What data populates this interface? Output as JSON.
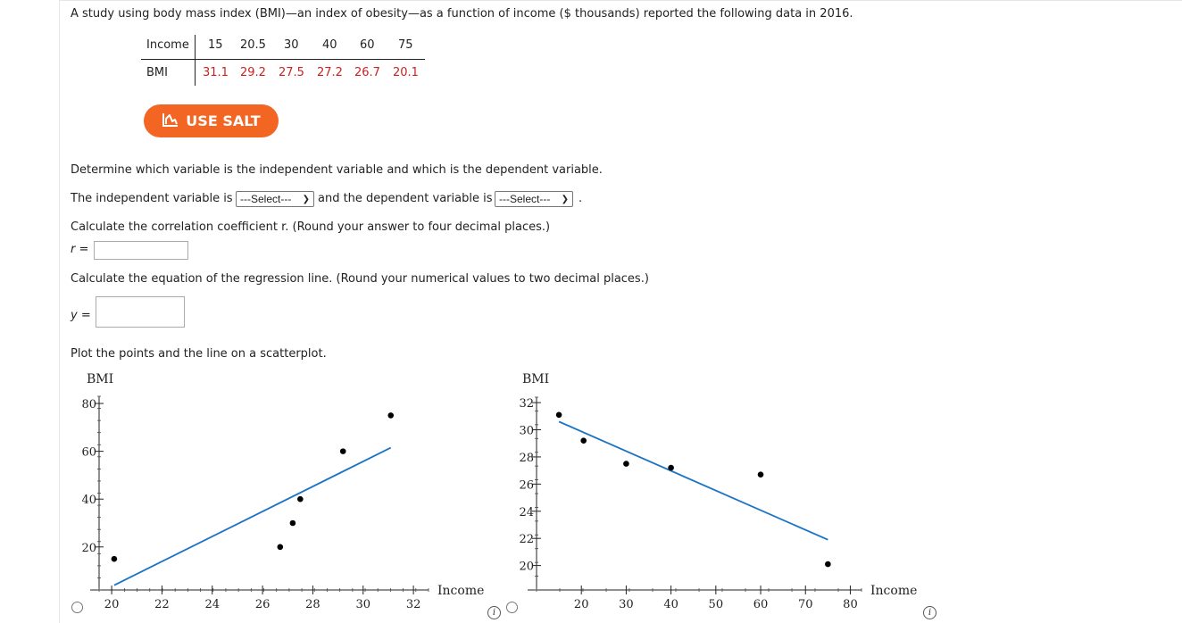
{
  "problem": {
    "intro": "A study using body mass index (BMI)—an index of obesity—as a function of income ($ thousands) reported the following data in 2016.",
    "table": {
      "row1_label": "Income",
      "row1_values": [
        "15",
        "20.5",
        "30",
        "40",
        "60",
        "75"
      ],
      "row2_label": "BMI",
      "row2_values": [
        "31.1",
        "29.2",
        "27.5",
        "27.2",
        "26.7",
        "20.1"
      ]
    },
    "salt_button": "USE SALT",
    "q1_text": "Determine which variable is the independent variable and which is the dependent variable.",
    "q1_part1": "The independent variable is",
    "q1_select1": "---Select---",
    "q1_part2": "and the dependent variable is",
    "q1_select2": "---Select---",
    "q1_end": ".",
    "q2_text": "Calculate the correlation coefficient r. (Round your answer to four decimal places.)",
    "q2_label": "r =",
    "q2_value": "",
    "q3_text": "Calculate the equation of the regression line. (Round your numerical values to two decimal places.)",
    "q3_label": "y =",
    "q3_value": "",
    "q4_text": "Plot the points and the line on a scatterplot."
  },
  "chart_data": [
    {
      "type": "scatter",
      "ylabel": "BMI",
      "xlabel": "Income",
      "x_ticks": [
        "20",
        "22",
        "24",
        "26",
        "28",
        "30",
        "32"
      ],
      "y_ticks": [
        "20",
        "40",
        "60",
        "80"
      ],
      "xlim": [
        19.5,
        32.6
      ],
      "ylim": [
        2,
        83
      ],
      "points": [
        [
          20.1,
          15
        ],
        [
          26.7,
          20
        ],
        [
          27.2,
          30
        ],
        [
          27.5,
          40
        ],
        [
          29.2,
          60
        ],
        [
          31.1,
          75
        ]
      ],
      "line": [
        [
          20.1,
          4
        ],
        [
          31.1,
          61.5
        ]
      ],
      "line_color": "#1a73c4",
      "point_color": "#000000"
    },
    {
      "type": "scatter",
      "ylabel": "BMI",
      "xlabel": "Income",
      "x_ticks": [
        "20",
        "30",
        "40",
        "50",
        "60",
        "70",
        "80"
      ],
      "y_ticks": [
        "20",
        "22",
        "24",
        "26",
        "28",
        "30",
        "32"
      ],
      "xlim": [
        10,
        82.5
      ],
      "ylim": [
        18.2,
        32.4
      ],
      "points": [
        [
          15,
          31.1
        ],
        [
          20.5,
          29.2
        ],
        [
          30,
          27.5
        ],
        [
          40,
          27.2
        ],
        [
          60,
          26.7
        ],
        [
          75,
          20.1
        ]
      ],
      "line": [
        [
          15,
          30.6
        ],
        [
          75,
          21.9
        ]
      ],
      "line_color": "#1a73c4",
      "point_color": "#000000"
    }
  ]
}
